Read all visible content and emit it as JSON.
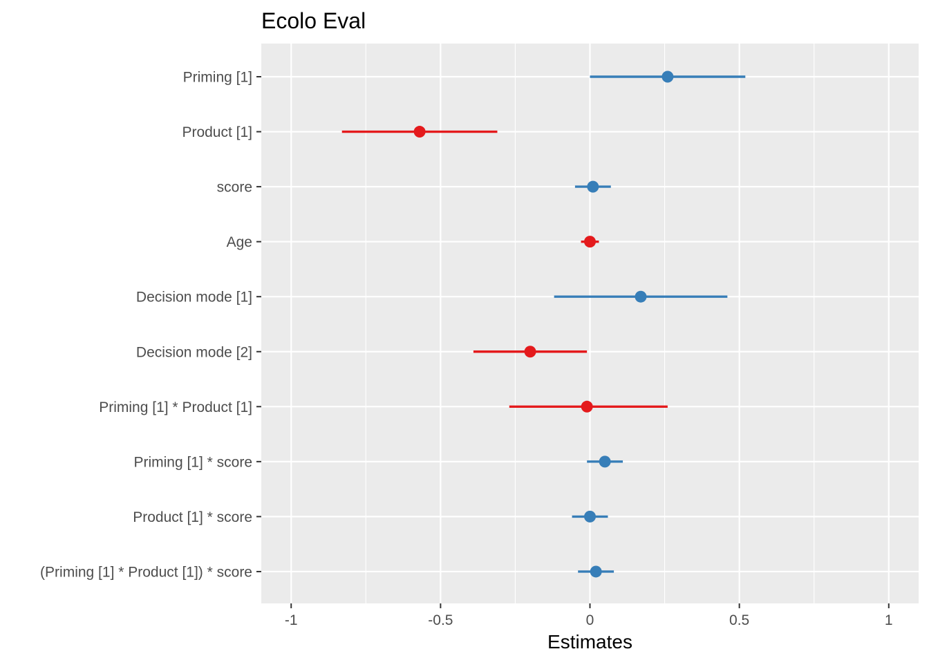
{
  "chart_data": {
    "type": "forest",
    "title": "Ecolo Eval",
    "xlabel": "Estimates",
    "ylabel": "",
    "xlim": [
      -1.1,
      1.1
    ],
    "x_ticks": [
      -1,
      -0.5,
      0,
      0.5,
      1
    ],
    "x_tick_labels": [
      "-1",
      "-0.5",
      "0",
      "0.5",
      "1"
    ],
    "grid": true,
    "legend": "none",
    "colors": {
      "positive": "#377EB8",
      "negative": "#E41A1C",
      "panel_background": "#EBEBEB",
      "grid": "#FFFFFF"
    },
    "terms": [
      {
        "label": "Priming [1]",
        "estimate": 0.26,
        "low": 0.0,
        "high": 0.52,
        "sign": "positive"
      },
      {
        "label": "Product [1]",
        "estimate": -0.57,
        "low": -0.83,
        "high": -0.31,
        "sign": "negative"
      },
      {
        "label": "score",
        "estimate": 0.01,
        "low": -0.05,
        "high": 0.07,
        "sign": "positive"
      },
      {
        "label": "Age",
        "estimate": 0.0,
        "low": -0.03,
        "high": 0.03,
        "sign": "negative"
      },
      {
        "label": "Decision mode [1]",
        "estimate": 0.17,
        "low": -0.12,
        "high": 0.46,
        "sign": "positive"
      },
      {
        "label": "Decision mode [2]",
        "estimate": -0.2,
        "low": -0.39,
        "high": -0.01,
        "sign": "negative"
      },
      {
        "label": "Priming [1] * Product [1]",
        "estimate": -0.01,
        "low": -0.27,
        "high": 0.26,
        "sign": "negative"
      },
      {
        "label": "Priming [1] * score",
        "estimate": 0.05,
        "low": -0.01,
        "high": 0.11,
        "sign": "positive"
      },
      {
        "label": "Product [1] * score",
        "estimate": 0.0,
        "low": -0.06,
        "high": 0.06,
        "sign": "positive"
      },
      {
        "label": "(Priming [1] * Product [1]) * score",
        "estimate": 0.02,
        "low": -0.04,
        "high": 0.08,
        "sign": "positive"
      }
    ]
  }
}
